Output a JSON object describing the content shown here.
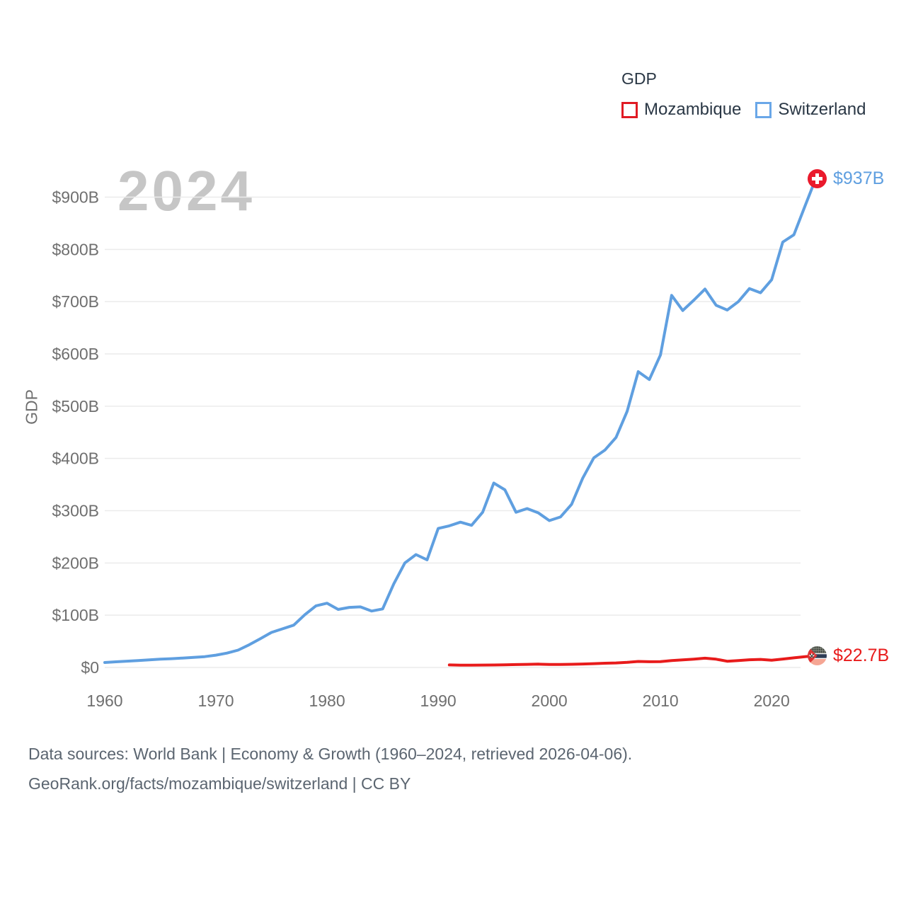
{
  "legend": {
    "title": "GDP",
    "items": [
      {
        "label": "Mozambique",
        "color": "#e01b24"
      },
      {
        "label": "Switzerland",
        "color": "#6aa7e8"
      }
    ]
  },
  "watermark": {
    "text": "2024"
  },
  "y_axis": {
    "title": "GDP"
  },
  "end_labels": {
    "switzerland": {
      "value": "$937B",
      "flag": "switzerland-flag-icon"
    },
    "mozambique": {
      "value": "$22.7B",
      "flag": "mozambique-flag-icon"
    }
  },
  "footer": {
    "line1": "Data sources: World Bank | Economy & Growth (1960–2024, retrieved 2026-04-06).",
    "line2": "GeoRank.org/facts/mozambique/switzerland | CC BY"
  },
  "chart_data": {
    "type": "line",
    "title": "GDP",
    "xlabel": "",
    "ylabel": "GDP",
    "x_tick_labels": [
      "1960",
      "1970",
      "1980",
      "1990",
      "2000",
      "2010",
      "2020"
    ],
    "y_tick_labels": [
      "$0",
      "$100B",
      "$200B",
      "$300B",
      "$400B",
      "$500B",
      "$600B",
      "$700B",
      "$800B",
      "$900B"
    ],
    "y_ticks_billions": [
      0,
      100,
      200,
      300,
      400,
      500,
      600,
      700,
      800,
      900
    ],
    "xlim": [
      1960,
      2024
    ],
    "ylim_billions": [
      0,
      950
    ],
    "grid": true,
    "legend_position": "top-right",
    "units": "current US$ billions",
    "series": [
      {
        "name": "Switzerland",
        "color": "#5f9fe0",
        "end_label": "$937B",
        "years": [
          1960,
          1961,
          1962,
          1963,
          1964,
          1965,
          1966,
          1967,
          1968,
          1969,
          1970,
          1971,
          1972,
          1973,
          1974,
          1975,
          1976,
          1977,
          1978,
          1979,
          1980,
          1981,
          1982,
          1983,
          1984,
          1985,
          1986,
          1987,
          1988,
          1989,
          1990,
          1991,
          1992,
          1993,
          1994,
          1995,
          1996,
          1997,
          1998,
          1999,
          2000,
          2001,
          2002,
          2003,
          2004,
          2005,
          2006,
          2007,
          2008,
          2009,
          2010,
          2011,
          2012,
          2013,
          2014,
          2015,
          2016,
          2017,
          2018,
          2019,
          2020,
          2021,
          2022,
          2023,
          2024
        ],
        "values": [
          9.5,
          10.9,
          12.1,
          13.2,
          14.6,
          15.8,
          16.8,
          18.0,
          19.3,
          20.7,
          23.5,
          27.5,
          33.2,
          43.5,
          55,
          67,
          74,
          81,
          101,
          118,
          123,
          111,
          115,
          116,
          108,
          112,
          160,
          200,
          216,
          206,
          266,
          271,
          278,
          272,
          297,
          353,
          340,
          297,
          304,
          296,
          281,
          288,
          312,
          362,
          401,
          416,
          440,
          490,
          566,
          551,
          598,
          712,
          683,
          703,
          724,
          693,
          684,
          700,
          725,
          717,
          742,
          814,
          828,
          883,
          937
        ]
      },
      {
        "name": "Mozambique",
        "color": "#e81b1b",
        "end_label": "$22.7B",
        "years": [
          1991,
          1992,
          1993,
          1994,
          1995,
          1996,
          1997,
          1998,
          1999,
          2000,
          2001,
          2002,
          2003,
          2004,
          2005,
          2006,
          2007,
          2008,
          2009,
          2010,
          2011,
          2012,
          2013,
          2014,
          2015,
          2016,
          2017,
          2018,
          2019,
          2020,
          2021,
          2022,
          2023,
          2024
        ],
        "values": [
          4.9,
          4.3,
          4.4,
          4.6,
          4.8,
          5.2,
          5.6,
          6.0,
          6.3,
          5.8,
          5.7,
          6.1,
          6.7,
          7.3,
          8.1,
          8.7,
          9.8,
          11.5,
          11.0,
          11.1,
          13.1,
          14.5,
          16.0,
          17.7,
          15.9,
          11.9,
          13.1,
          14.8,
          15.4,
          14.0,
          16.1,
          18.4,
          20.6,
          22.7
        ]
      }
    ]
  }
}
